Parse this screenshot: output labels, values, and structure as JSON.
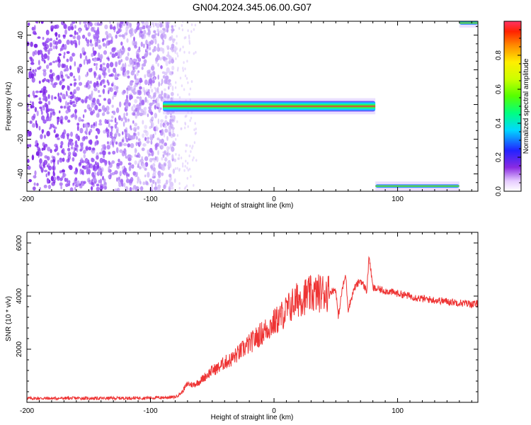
{
  "figure": {
    "title": "GN04.2024.345.06.00.G07"
  },
  "chart_data": [
    {
      "type": "heatmap",
      "xlabel": "Height of straight line (km)",
      "ylabel": "Frequency (Hz)",
      "xlim": [
        -200,
        165
      ],
      "ylim": [
        -50,
        48
      ],
      "xticks": [
        -200,
        -100,
        0,
        100
      ],
      "xtick_labels": [
        "-200",
        "-100",
        "0",
        "100"
      ],
      "yticks": [
        -40,
        -20,
        0,
        20,
        40
      ],
      "ytick_labels": [
        "-40",
        "-20",
        "0",
        "20",
        "40"
      ],
      "colorbar": {
        "label": "Normalized spectral amplitude",
        "range": [
          0,
          1
        ],
        "ticks": [
          0.0,
          0.2,
          0.4,
          0.6,
          0.8
        ],
        "tick_labels": [
          "0.0",
          "0.2",
          "0.4",
          "0.6",
          "0.8"
        ],
        "colormap": "rainbow (white-violet-blue-cyan-green-yellow-red)"
      },
      "features": [
        {
          "description": "diffuse noise",
          "x_range": [
            -200,
            -80
          ],
          "y_range": [
            -50,
            48
          ],
          "amplitude": 0.05
        },
        {
          "description": "tracked signal",
          "x_range": [
            -90,
            82
          ],
          "y_range": [
            -4,
            2
          ],
          "amplitude": 1.0
        },
        {
          "description": "aliased signal",
          "x_range": [
            82,
            150
          ],
          "y_range": [
            -48,
            -46
          ],
          "amplitude": 1.0
        },
        {
          "description": "aliased signal",
          "x_range": [
            150,
            165
          ],
          "y_range": [
            46,
            48
          ],
          "amplitude": 1.0
        }
      ],
      "grid": false
    },
    {
      "type": "line",
      "xlabel": "Height of straight line (km)",
      "ylabel": "SNR (10 * v/v)",
      "xlim": [
        -200,
        165
      ],
      "ylim": [
        0,
        6400
      ],
      "xticks": [
        -200,
        -100,
        0,
        100
      ],
      "xtick_labels": [
        "-200",
        "-100",
        "0",
        "100"
      ],
      "yticks": [
        2000,
        4000,
        6000
      ],
      "ytick_labels": [
        "2000",
        "4000",
        "6000"
      ],
      "series": [
        {
          "color": "#ee3333",
          "x": [
            -200,
            -180,
            -160,
            -140,
            -120,
            -100,
            -90,
            -80,
            -75,
            -70,
            -65,
            -60,
            -55,
            -50,
            -45,
            -40,
            -35,
            -30,
            -25,
            -20,
            -15,
            -10,
            -5,
            0,
            5,
            10,
            15,
            20,
            25,
            30,
            35,
            40,
            45,
            50,
            52,
            55,
            58,
            60,
            65,
            70,
            75,
            77,
            80,
            85,
            90,
            95,
            100,
            110,
            120,
            130,
            140,
            150,
            160,
            165
          ],
          "y": [
            150,
            150,
            155,
            150,
            160,
            170,
            180,
            200,
            350,
            700,
            650,
            800,
            1000,
            1200,
            1300,
            1500,
            1600,
            1800,
            2000,
            2200,
            2400,
            2600,
            2800,
            3000,
            3200,
            3450,
            3700,
            3900,
            4000,
            4050,
            4100,
            4150,
            4150,
            4250,
            3200,
            4200,
            4800,
            3500,
            4300,
            4600,
            4200,
            5500,
            4300,
            4250,
            4200,
            4150,
            4100,
            4000,
            3900,
            3850,
            3800,
            3750,
            3700,
            3700
          ]
        }
      ],
      "grid": false
    }
  ]
}
